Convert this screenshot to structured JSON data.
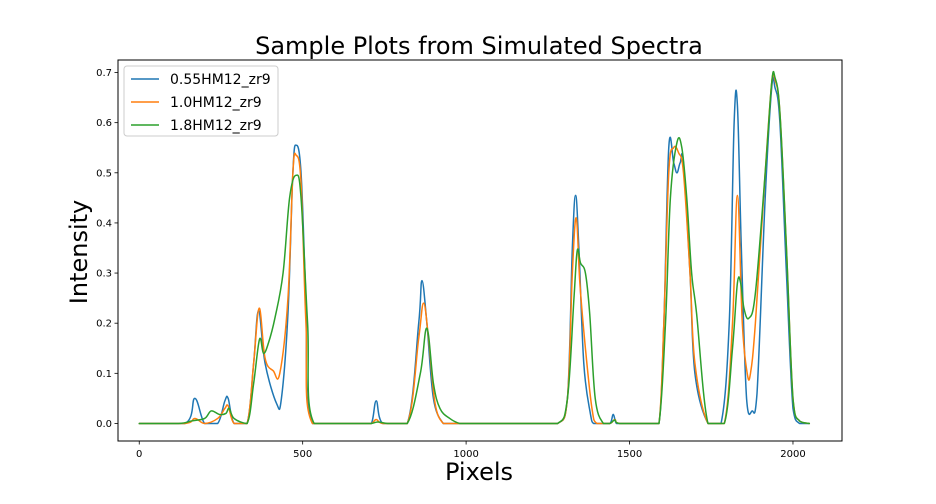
{
  "chart_data": {
    "type": "line",
    "title": "Sample Plots from Simulated Spectra",
    "xlabel": "Pixels",
    "ylabel": "Intensity",
    "xlim": [
      -65,
      2150
    ],
    "ylim": [
      -0.035,
      0.725
    ],
    "xticks": [
      0,
      500,
      1000,
      1500,
      2000
    ],
    "yticks": [
      0.0,
      0.1,
      0.2,
      0.3,
      0.4,
      0.5,
      0.6,
      0.7
    ],
    "ytick_labels": [
      "0.0",
      "0.1",
      "0.2",
      "0.3",
      "0.4",
      "0.5",
      "0.6",
      "0.7"
    ],
    "grid": false,
    "legend_position": "top-left",
    "series": [
      {
        "name": "0.55HM12_zr9",
        "color": "#1f77b4",
        "x": [
          0,
          140,
          170,
          200,
          240,
          262,
          272,
          290,
          330,
          350,
          365,
          385,
          420,
          435,
          455,
          470,
          480,
          495,
          510,
          530,
          680,
          710,
          725,
          745,
          820,
          855,
          865,
          880,
          900,
          930,
          950,
          1000,
          1100,
          1200,
          1280,
          1310,
          1325,
          1335,
          1345,
          1360,
          1380,
          1390,
          1410,
          1440,
          1450,
          1460,
          1480,
          1560,
          1590,
          1605,
          1620,
          1635,
          1645,
          1655,
          1665,
          1685,
          1700,
          1740,
          1780,
          1805,
          1820,
          1830,
          1842,
          1858,
          1875,
          1890,
          1915,
          1935,
          1945,
          1960,
          1980,
          2000,
          2020,
          2050
        ],
        "y": [
          0.0,
          0.0,
          0.05,
          0.0,
          0.0,
          0.045,
          0.05,
          0.0,
          0.0,
          0.12,
          0.225,
          0.12,
          0.04,
          0.05,
          0.22,
          0.5,
          0.555,
          0.5,
          0.25,
          0.0,
          0.0,
          0.0,
          0.045,
          0.0,
          0.0,
          0.2,
          0.285,
          0.2,
          0.05,
          0.0,
          0.0,
          0.0,
          0.0,
          0.0,
          0.0,
          0.05,
          0.35,
          0.455,
          0.35,
          0.12,
          0.02,
          0.0,
          0.0,
          0.0,
          0.018,
          0.0,
          0.0,
          0.0,
          0.0,
          0.2,
          0.55,
          0.52,
          0.5,
          0.52,
          0.52,
          0.3,
          0.1,
          0.0,
          0.0,
          0.2,
          0.6,
          0.635,
          0.35,
          0.05,
          0.025,
          0.06,
          0.45,
          0.67,
          0.67,
          0.6,
          0.3,
          0.03,
          0.0,
          0.0
        ]
      },
      {
        "name": "1.0HM12_zr9",
        "color": "#ff7f0e",
        "x": [
          0,
          140,
          170,
          200,
          240,
          262,
          272,
          290,
          330,
          350,
          367,
          385,
          410,
          430,
          455,
          470,
          480,
          495,
          510,
          530,
          680,
          710,
          725,
          745,
          820,
          855,
          870,
          885,
          905,
          930,
          950,
          1000,
          1100,
          1200,
          1280,
          1310,
          1325,
          1337,
          1348,
          1365,
          1385,
          1400,
          1440,
          1455,
          1470,
          1560,
          1590,
          1605,
          1620,
          1635,
          1650,
          1665,
          1685,
          1700,
          1740,
          1790,
          1815,
          1830,
          1845,
          1860,
          1870,
          1885,
          1915,
          1935,
          1945,
          1960,
          1980,
          2000,
          2020,
          2050
        ],
        "y": [
          0.0,
          0.0,
          0.01,
          0.0,
          0.01,
          0.03,
          0.035,
          0.0,
          0.0,
          0.12,
          0.23,
          0.13,
          0.105,
          0.1,
          0.25,
          0.5,
          0.535,
          0.48,
          0.2,
          0.0,
          0.0,
          0.0,
          0.008,
          0.0,
          0.0,
          0.17,
          0.24,
          0.17,
          0.04,
          0.0,
          0.0,
          0.0,
          0.0,
          0.0,
          0.0,
          0.05,
          0.3,
          0.41,
          0.28,
          0.15,
          0.03,
          0.0,
          0.0,
          0.008,
          0.0,
          0.0,
          0.0,
          0.2,
          0.5,
          0.55,
          0.54,
          0.5,
          0.3,
          0.12,
          0.0,
          0.0,
          0.2,
          0.455,
          0.2,
          0.1,
          0.1,
          0.2,
          0.5,
          0.68,
          0.685,
          0.62,
          0.35,
          0.05,
          0.005,
          0.0
        ],
        "_y": []
      },
      {
        "name": "1.8HM12_zr9",
        "color": "#2ca02c",
        "x": [
          0,
          120,
          160,
          200,
          220,
          245,
          265,
          275,
          290,
          330,
          350,
          368,
          380,
          395,
          415,
          440,
          460,
          480,
          495,
          515,
          535,
          680,
          710,
          730,
          760,
          820,
          860,
          880,
          900,
          920,
          950,
          980,
          1000,
          1100,
          1200,
          1280,
          1310,
          1330,
          1340,
          1350,
          1365,
          1378,
          1395,
          1420,
          1440,
          1455,
          1470,
          1560,
          1590,
          1610,
          1625,
          1645,
          1660,
          1675,
          1690,
          1705,
          1740,
          1790,
          1815,
          1830,
          1840,
          1850,
          1865,
          1885,
          1915,
          1935,
          1945,
          1960,
          1980,
          2000,
          2020,
          2050
        ],
        "y": [
          0.0,
          0.0,
          0.005,
          0.01,
          0.025,
          0.018,
          0.02,
          0.03,
          0.01,
          0.0,
          0.08,
          0.168,
          0.14,
          0.16,
          0.21,
          0.3,
          0.45,
          0.495,
          0.45,
          0.2,
          0.0,
          0.0,
          0.0,
          0.003,
          0.0,
          0.0,
          0.1,
          0.19,
          0.08,
          0.03,
          0.01,
          0.0,
          0.0,
          0.0,
          0.0,
          0.0,
          0.05,
          0.25,
          0.345,
          0.32,
          0.3,
          0.22,
          0.05,
          0.0,
          0.0,
          0.007,
          0.0,
          0.0,
          0.0,
          0.2,
          0.45,
          0.56,
          0.55,
          0.45,
          0.3,
          0.22,
          0.0,
          0.0,
          0.15,
          0.28,
          0.28,
          0.23,
          0.21,
          0.26,
          0.5,
          0.68,
          0.69,
          0.62,
          0.35,
          0.05,
          0.005,
          0.0
        ]
      }
    ]
  }
}
